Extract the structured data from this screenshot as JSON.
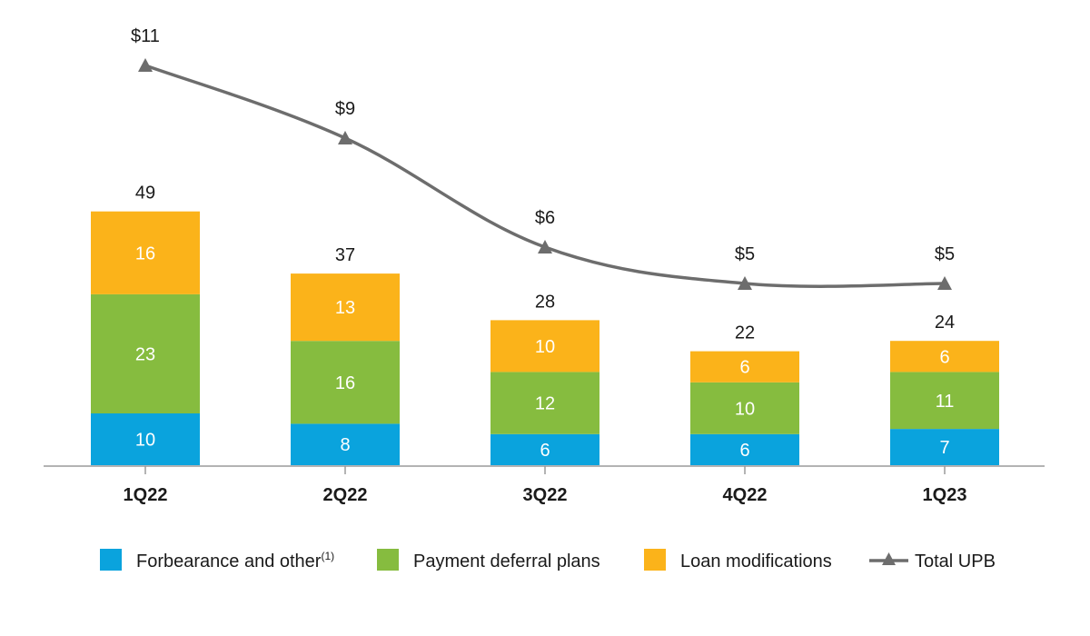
{
  "chart_data": {
    "type": "bar",
    "stacked": true,
    "categories": [
      "1Q22",
      "2Q22",
      "3Q22",
      "4Q22",
      "1Q23"
    ],
    "series": [
      {
        "name": "Forbearance and other",
        "name_sup": "(1)",
        "color": "#0aa3dd",
        "values": [
          10,
          8,
          6,
          6,
          7
        ]
      },
      {
        "name": "Payment deferral plans",
        "color": "#86bc3f",
        "values": [
          23,
          16,
          12,
          10,
          11
        ]
      },
      {
        "name": "Loan modifications",
        "color": "#fbb31a",
        "values": [
          16,
          13,
          10,
          6,
          6
        ]
      }
    ],
    "totals": [
      "49",
      "37",
      "28",
      "22",
      "24"
    ],
    "line": {
      "name": "Total UPB",
      "color": "#6d6d6d",
      "values": [
        11,
        9,
        6,
        5,
        5
      ],
      "labels": [
        "$11",
        "$9",
        "$6",
        "$5",
        "$5"
      ]
    },
    "ylim": [
      0,
      52
    ],
    "grid": false,
    "legend_position": "bottom"
  }
}
